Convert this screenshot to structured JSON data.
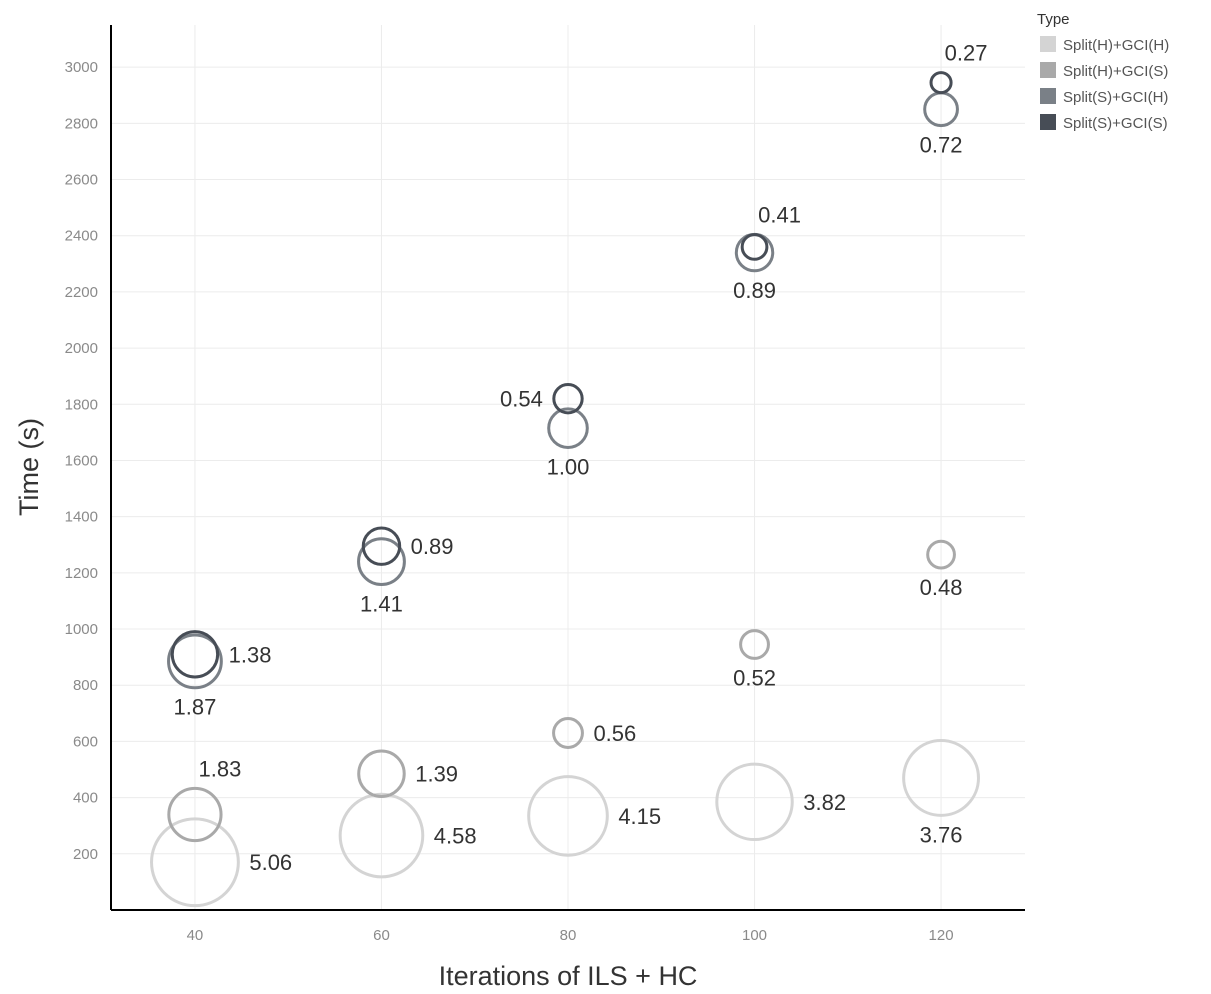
{
  "chart_data": {
    "type": "scatter",
    "xlabel": "Iterations of ILS + HC",
    "ylabel": "Time (s)",
    "xlim": [
      31,
      129
    ],
    "ylim": [
      0,
      3150
    ],
    "x_ticks": [
      40,
      60,
      80,
      100,
      120
    ],
    "y_ticks": [
      200,
      400,
      600,
      800,
      1000,
      1200,
      1400,
      1600,
      1800,
      2000,
      2200,
      2400,
      2600,
      2800,
      3000
    ],
    "grid": true,
    "legend": {
      "title": "Type",
      "position": "top-right",
      "entries": [
        "Split(H)+GCI(H)",
        "Split(H)+GCI(S)",
        "Split(S)+GCI(H)",
        "Split(S)+GCI(S)"
      ]
    },
    "series": [
      {
        "name": "Split(H)+GCI(H)",
        "color": "#d4d4d4",
        "points": [
          {
            "x": 40,
            "y": 170,
            "size": 5.06,
            "label": "5.06"
          },
          {
            "x": 60,
            "y": 265,
            "size": 4.58,
            "label": "4.58"
          },
          {
            "x": 80,
            "y": 335,
            "size": 4.15,
            "label": "4.15"
          },
          {
            "x": 100,
            "y": 385,
            "size": 3.82,
            "label": "3.82"
          },
          {
            "x": 120,
            "y": 470,
            "size": 3.76,
            "label": "3.76"
          }
        ]
      },
      {
        "name": "Split(H)+GCI(S)",
        "color": "#a9a9a9",
        "points": [
          {
            "x": 40,
            "y": 340,
            "size": 1.83,
            "label": "1.83"
          },
          {
            "x": 60,
            "y": 485,
            "size": 1.39,
            "label": "1.39"
          },
          {
            "x": 80,
            "y": 630,
            "size": 0.56,
            "label": "0.56"
          },
          {
            "x": 100,
            "y": 945,
            "size": 0.52,
            "label": "0.52"
          },
          {
            "x": 120,
            "y": 1265,
            "size": 0.48,
            "label": "0.48"
          }
        ]
      },
      {
        "name": "Split(S)+GCI(H)",
        "color": "#7a8087",
        "points": [
          {
            "x": 40,
            "y": 885,
            "size": 1.87,
            "label": "1.87"
          },
          {
            "x": 60,
            "y": 1240,
            "size": 1.41,
            "label": "1.41"
          },
          {
            "x": 80,
            "y": 1715,
            "size": 1.0,
            "label": "1.00"
          },
          {
            "x": 100,
            "y": 2340,
            "size": 0.89,
            "label": "0.89"
          },
          {
            "x": 120,
            "y": 2850,
            "size": 0.72,
            "label": "0.72"
          }
        ]
      },
      {
        "name": "Split(S)+GCI(S)",
        "color": "#474d56",
        "points": [
          {
            "x": 40,
            "y": 910,
            "size": 1.38,
            "label": "1.38"
          },
          {
            "x": 60,
            "y": 1295,
            "size": 0.89,
            "label": "0.89"
          },
          {
            "x": 80,
            "y": 1820,
            "size": 0.54,
            "label": "0.54"
          },
          {
            "x": 100,
            "y": 2360,
            "size": 0.41,
            "label": "0.41"
          },
          {
            "x": 120,
            "y": 2945,
            "size": 0.27,
            "label": "0.27"
          }
        ]
      }
    ]
  }
}
